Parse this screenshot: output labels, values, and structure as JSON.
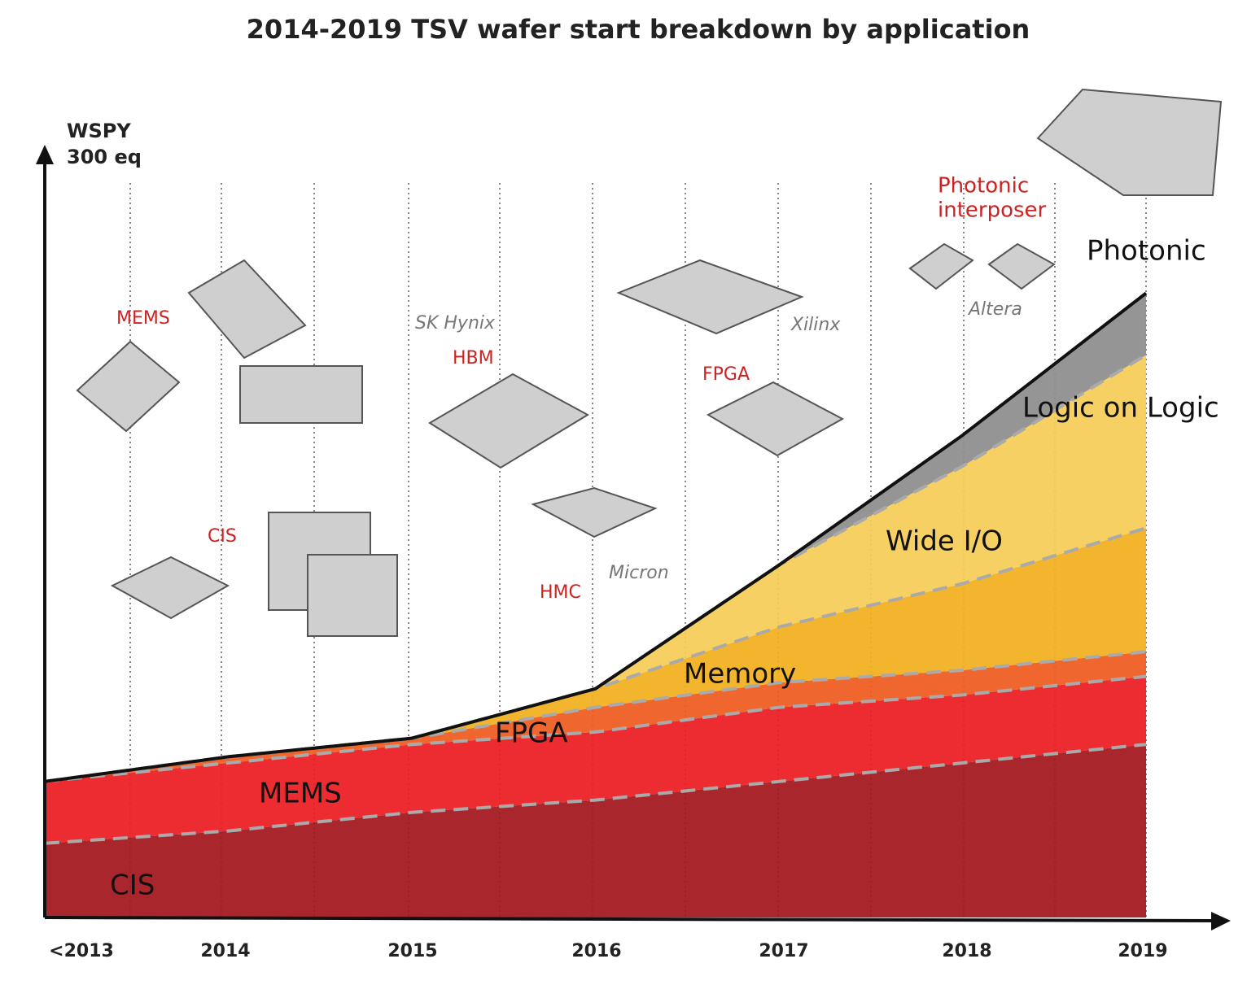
{
  "chart_data": {
    "type": "area",
    "title": "2014-2019 TSV wafer start breakdown by application",
    "y_label": [
      "WSPY",
      "300 eq"
    ],
    "categories": [
      "<2013",
      "2014",
      "2015",
      "2016",
      "2017",
      "2018",
      "2019"
    ],
    "stacked": true,
    "ylim": [
      0,
      125
    ],
    "series": [
      {
        "name": "CIS",
        "color": "#a3141b",
        "values": [
          12,
          14,
          17,
          19,
          22,
          25,
          28
        ]
      },
      {
        "name": "MEMS",
        "color": "#ea1a1e",
        "values": [
          10,
          11,
          11,
          11,
          12,
          11,
          11
        ]
      },
      {
        "name": "FPGA",
        "color": "#ee5a1c",
        "values": [
          0,
          1,
          1,
          4,
          4,
          4,
          4
        ]
      },
      {
        "name": "Memory",
        "color": "#f2ae1c",
        "values": [
          0,
          0,
          0,
          3,
          9,
          14,
          20
        ]
      },
      {
        "name": "Wide I/O",
        "color": "#f5cc55",
        "values": [
          0,
          0,
          0,
          0,
          10,
          19,
          28
        ]
      },
      {
        "name": "Logic on Logic",
        "color": "#8c8c8c",
        "values": [
          0,
          0,
          0,
          0,
          0,
          5,
          10
        ]
      },
      {
        "name": "Photonic",
        "color": "#2a2a2a",
        "values": [
          0,
          0,
          0,
          0,
          0,
          0,
          0
        ]
      }
    ],
    "annotations": [
      {
        "text": "MEMS",
        "color": "#cc2222"
      },
      {
        "text": "CIS",
        "color": "#cc2222"
      },
      {
        "text": "SK Hynix",
        "color": "#777777"
      },
      {
        "text": "HBM",
        "color": "#cc2222"
      },
      {
        "text": "HMC",
        "color": "#cc2222"
      },
      {
        "text": "Micron",
        "color": "#777777"
      },
      {
        "text": "Xilinx",
        "color": "#777777"
      },
      {
        "text": "FPGA",
        "color": "#cc2222"
      },
      {
        "text": "Photonic",
        "color": "#cc2222"
      },
      {
        "text": "interposer",
        "color": "#cc2222"
      },
      {
        "text": "Altera",
        "color": "#777777"
      }
    ]
  }
}
